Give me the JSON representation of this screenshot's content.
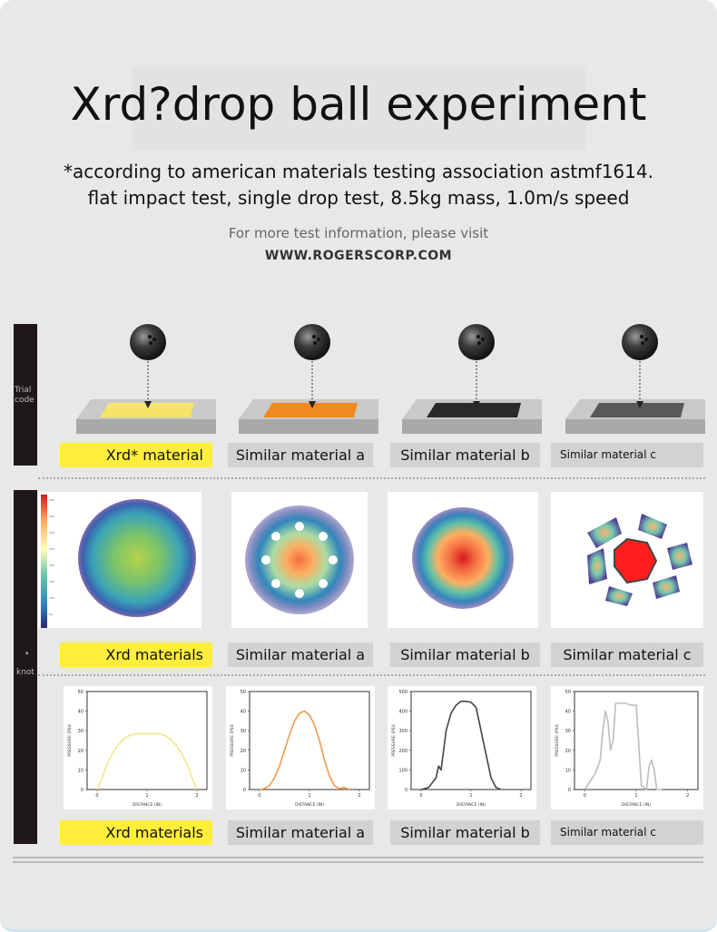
{
  "header": {
    "title": "Xrd?drop ball experiment",
    "subtitle_line1": "*according to american materials testing association astmf1614.",
    "subtitle_line2": "flat impact test, single drop test, 8.5kg mass, 1.0m/s speed",
    "info_text": "For more test information, please visit",
    "url_text": "WWW.ROGERSCORP.COM"
  },
  "side_labels": {
    "top": "Trial code",
    "middle_marker": "•",
    "bottom": "knot"
  },
  "row_labels": {
    "row1": [
      "Xrd* material",
      "Similar material a",
      "Similar material b",
      "Similar material c"
    ],
    "row2": [
      "Xrd materials",
      "Similar material a",
      "Similar material b",
      "Similar material c"
    ],
    "row3": [
      "Xrd materials",
      "Similar material a",
      "Similar material b",
      "Similar material c"
    ]
  },
  "colors": {
    "xrd_pad": "#f5e36a",
    "a_pad": "#f08a1e",
    "b_pad": "#2a2a2a",
    "c_pad": "#555555",
    "highlight_label": "#ffee3a",
    "grey_label": "#d2d2d2"
  },
  "chart_data": [
    {
      "type": "line",
      "series": [
        {
          "name": "",
          "color": "#f6e48a",
          "x": [
            0.0,
            0.1,
            0.2,
            0.3,
            0.4,
            0.5,
            0.6,
            0.7,
            0.8,
            0.9,
            1.0,
            1.1,
            1.2,
            1.3,
            1.4,
            1.5,
            1.6,
            1.7,
            1.8,
            1.9,
            2.0
          ],
          "y": [
            0,
            6,
            13,
            18,
            22,
            25,
            27,
            28,
            28.5,
            28.5,
            28.5,
            28.5,
            28.5,
            28,
            27,
            25,
            22,
            18,
            13,
            6,
            0
          ]
        }
      ],
      "xlabel": "DISTANCE (IN)",
      "ylabel": "PRESSURE (PSI)",
      "xlim": [
        -0.2,
        2.2
      ],
      "ylim": [
        0,
        50
      ],
      "xticks": [
        0,
        1,
        2
      ],
      "yticks": [
        0,
        10,
        20,
        30,
        40,
        50
      ]
    },
    {
      "type": "line",
      "series": [
        {
          "name": "",
          "color": "#ef9a4a",
          "x": [
            0.0,
            0.1,
            0.2,
            0.3,
            0.4,
            0.5,
            0.6,
            0.7,
            0.8,
            0.9,
            1.0,
            1.1,
            1.2,
            1.3,
            1.4,
            1.5,
            1.6,
            1.7,
            1.8
          ],
          "y": [
            0,
            0.5,
            2,
            6,
            12,
            20,
            28,
            35,
            39,
            40,
            38,
            33,
            25,
            15,
            7,
            2,
            0.5,
            1,
            0
          ]
        }
      ],
      "xlabel": "DISTANCE (IN)",
      "ylabel": "PRESSURE (PSI)",
      "xlim": [
        -0.2,
        2.2
      ],
      "ylim": [
        0,
        50
      ],
      "xticks": [
        0,
        1,
        2
      ],
      "yticks": [
        0,
        10,
        20,
        30,
        40,
        50
      ]
    },
    {
      "type": "line",
      "series": [
        {
          "name": "",
          "color": "#444444",
          "x": [
            0.0,
            0.15,
            0.3,
            0.35,
            0.4,
            0.45,
            0.5,
            0.6,
            0.7,
            0.8,
            0.9,
            1.0,
            1.1,
            1.2,
            1.3,
            1.4,
            1.5,
            1.6
          ],
          "y": [
            0,
            10,
            60,
            120,
            100,
            200,
            300,
            390,
            430,
            450,
            450,
            445,
            420,
            300,
            180,
            60,
            10,
            0
          ]
        }
      ],
      "xlabel": "DISTANCE (IN)",
      "ylabel": "PRESSURE (PSI)",
      "xlim": [
        -0.2,
        2.2
      ],
      "ylim": [
        0,
        500
      ],
      "xticks": [
        0,
        1,
        2
      ],
      "yticks": [
        0,
        100,
        200,
        300,
        400,
        500
      ]
    },
    {
      "type": "line",
      "series": [
        {
          "name": "",
          "color": "#bdbdbd",
          "x": [
            0.0,
            0.2,
            0.3,
            0.35,
            0.4,
            0.45,
            0.5,
            0.55,
            0.6,
            0.7,
            0.8,
            0.9,
            1.0,
            1.1,
            1.2,
            1.25,
            1.3,
            1.35,
            1.4,
            1.5
          ],
          "y": [
            0,
            8,
            15,
            30,
            40,
            35,
            20,
            25,
            44,
            44,
            44,
            43,
            43,
            2,
            0,
            12,
            15,
            10,
            0,
            0
          ]
        }
      ],
      "xlabel": "DISTANCE (IN)",
      "ylabel": "PRESSURE (PSI)",
      "xlim": [
        -0.2,
        2.2
      ],
      "ylim": [
        0,
        50
      ],
      "xticks": [
        0,
        1,
        2
      ],
      "yticks": [
        0,
        10,
        20,
        30,
        40,
        50
      ]
    }
  ],
  "colorbar": {
    "ticks": [
      "400",
      "350",
      "300",
      "250",
      "200",
      "150",
      "100",
      "50"
    ]
  }
}
